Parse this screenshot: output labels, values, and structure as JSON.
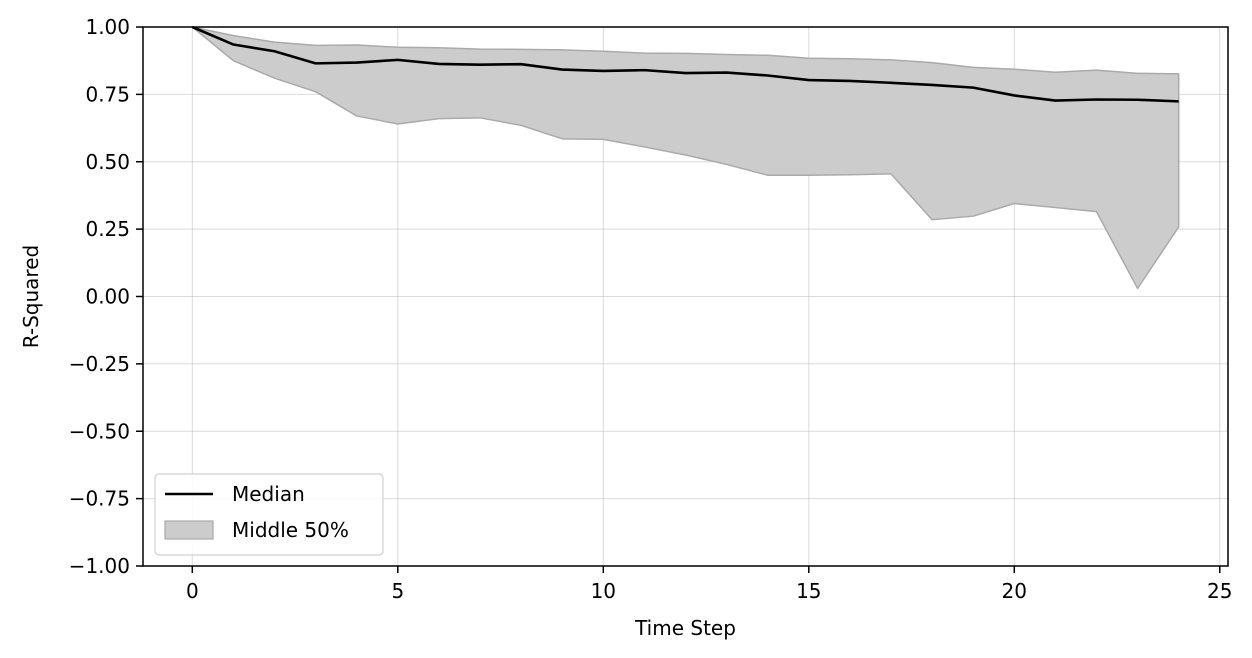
{
  "chart_data": {
    "type": "line",
    "title": "",
    "xlabel": "Time Step",
    "ylabel": "R-Squared",
    "xlim": [
      -1.2,
      25.2
    ],
    "ylim": [
      -1.0,
      1.0
    ],
    "xticks": [
      0,
      5,
      10,
      15,
      20,
      25
    ],
    "xtick_labels": [
      "0",
      "5",
      "10",
      "15",
      "20",
      "25"
    ],
    "yticks": [
      -1.0,
      -0.75,
      -0.5,
      -0.25,
      0.0,
      0.25,
      0.5,
      0.75,
      1.0
    ],
    "ytick_labels": [
      "−1.00",
      "−0.75",
      "−0.50",
      "−0.25",
      "0.00",
      "0.25",
      "0.50",
      "0.75",
      "1.00"
    ],
    "grid": true,
    "legend_position": "lower-left",
    "x": [
      0,
      1,
      2,
      3,
      4,
      5,
      6,
      7,
      8,
      9,
      10,
      11,
      12,
      13,
      14,
      15,
      16,
      17,
      18,
      19,
      20,
      21,
      22,
      23,
      24
    ],
    "series": [
      {
        "name": "Median",
        "kind": "line",
        "color": "#000000",
        "values": [
          1.0,
          0.935,
          0.91,
          0.865,
          0.868,
          0.878,
          0.863,
          0.86,
          0.862,
          0.842,
          0.837,
          0.84,
          0.829,
          0.831,
          0.82,
          0.803,
          0.8,
          0.793,
          0.785,
          0.775,
          0.746,
          0.727,
          0.731,
          0.73,
          0.724
        ]
      },
      {
        "name": "Middle 50%",
        "kind": "band",
        "color": "#cccccc",
        "edge_color": "#aaaaaa",
        "upper": [
          1.0,
          0.968,
          0.944,
          0.932,
          0.933,
          0.925,
          0.923,
          0.918,
          0.917,
          0.915,
          0.91,
          0.903,
          0.902,
          0.898,
          0.895,
          0.884,
          0.882,
          0.878,
          0.868,
          0.85,
          0.843,
          0.832,
          0.84,
          0.828,
          0.826
        ],
        "lower": [
          1.0,
          0.875,
          0.81,
          0.76,
          0.67,
          0.64,
          0.66,
          0.663,
          0.635,
          0.585,
          0.583,
          0.555,
          0.525,
          0.49,
          0.45,
          0.45,
          0.452,
          0.455,
          0.285,
          0.298,
          0.345,
          0.33,
          0.315,
          0.03,
          0.258
        ]
      }
    ]
  }
}
